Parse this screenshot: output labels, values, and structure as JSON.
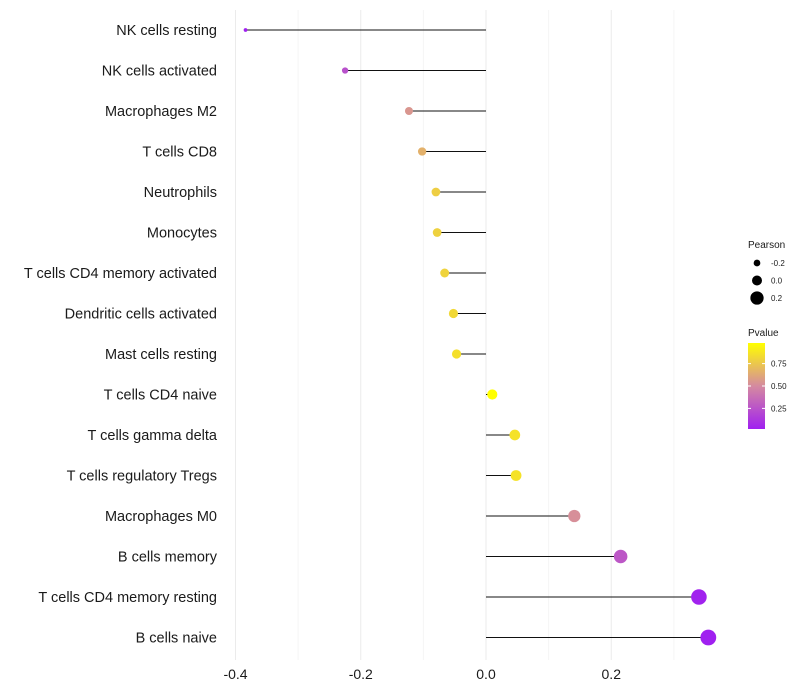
{
  "chart_data": {
    "type": "lollipop",
    "title": "",
    "xlabel": "",
    "ylabel": "",
    "xlim": [
      -0.42,
      0.38
    ],
    "xticks": [
      -0.4,
      -0.2,
      0.0,
      0.2
    ],
    "xtick_labels": [
      "-0.4",
      "-0.2",
      "0.0",
      "0.2"
    ],
    "grid": true,
    "categories": [
      "NK cells resting",
      "NK cells activated",
      "Macrophages M2",
      "T cells CD8",
      "Neutrophils",
      "Monocytes",
      "T cells CD4 memory activated",
      "Dendritic cells activated",
      "Mast cells resting",
      "T cells CD4 naive",
      "T cells gamma delta",
      "T cells regulatory  Tregs",
      "Macrophages M0",
      "B cells memory",
      "T cells CD4 memory resting",
      "B cells naive"
    ],
    "pearson": [
      -0.384,
      -0.225,
      -0.123,
      -0.102,
      -0.08,
      -0.078,
      -0.066,
      -0.052,
      -0.047,
      0.01,
      0.046,
      0.048,
      0.141,
      0.215,
      0.34,
      0.355
    ],
    "pvalue": [
      0.02,
      0.24,
      0.55,
      0.66,
      0.78,
      0.79,
      0.8,
      0.82,
      0.85,
      0.98,
      0.86,
      0.86,
      0.52,
      0.27,
      0.03,
      0.02
    ],
    "legend": {
      "position": "right",
      "size": {
        "title": "Pearson",
        "items": [
          {
            "label": "-0.2",
            "value": -0.2
          },
          {
            "label": "0.0",
            "value": 0.0
          },
          {
            "label": "0.2",
            "value": 0.2
          }
        ]
      },
      "color": {
        "title": "Pvalue",
        "low_color": "#a020f0",
        "mid_color": "#d58aa0",
        "high_color": "#ffff00",
        "range": [
          0.02,
          0.98
        ],
        "ticks": [
          {
            "label": "0.75",
            "value": 0.75
          },
          {
            "label": "0.50",
            "value": 0.5
          },
          {
            "label": "0.25",
            "value": 0.25
          }
        ]
      }
    }
  }
}
